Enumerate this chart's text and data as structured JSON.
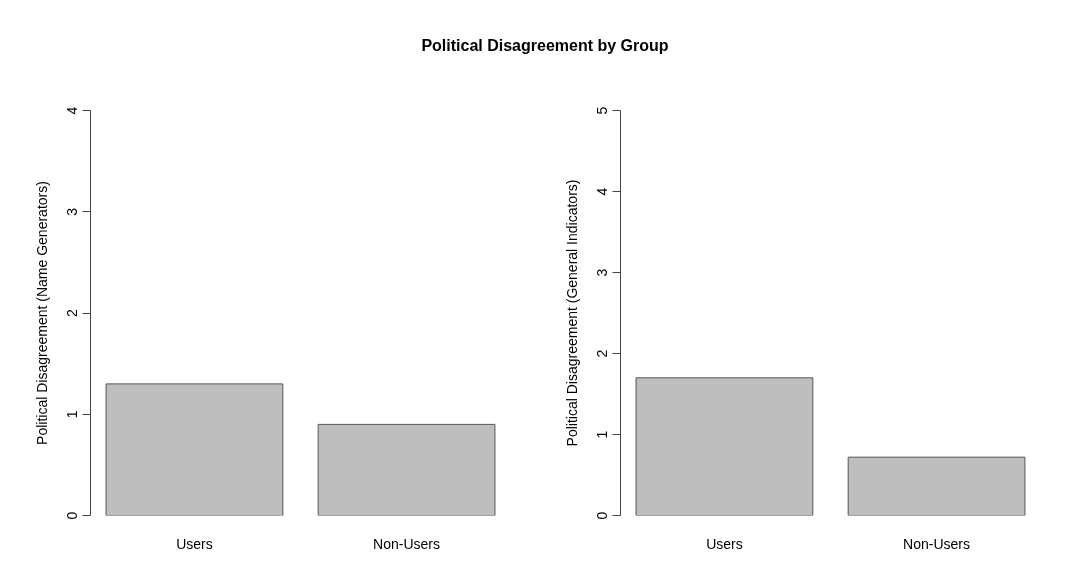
{
  "chart_data": [
    {
      "type": "bar",
      "title": "Political Disagreement by Group",
      "ylabel": "Political Disagreement (Name Generators)",
      "categories": [
        "Users",
        "Non-Users"
      ],
      "values": [
        1.3,
        0.9
      ],
      "color": "#bebebe",
      "ylim": [
        0,
        4
      ],
      "yticks": [
        0,
        1,
        2,
        3,
        4
      ]
    },
    {
      "type": "bar",
      "ylabel": "Political Disagreement (General Indicators)",
      "categories": [
        "Users",
        "Non-Users"
      ],
      "values": [
        1.7,
        0.72
      ],
      "color": "#bebebe",
      "ylim": [
        0,
        5
      ],
      "yticks": [
        0,
        1,
        2,
        3,
        4,
        5
      ]
    }
  ]
}
